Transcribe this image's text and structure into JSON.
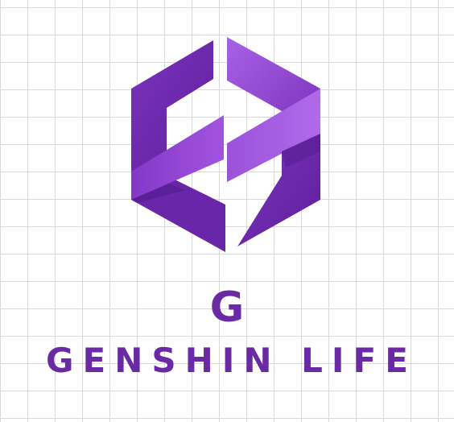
{
  "logo": {
    "letter": "G",
    "name": "GENSHIN LIFE",
    "mark_icon": "hexagon-swirl-icon"
  },
  "colors": {
    "primary": "#6a2aa4",
    "dark": "#5a2096",
    "mid": "#7d35c0",
    "light": "#a45ae0",
    "grid_line": "#d9d9d9",
    "background": "#ffffff"
  }
}
